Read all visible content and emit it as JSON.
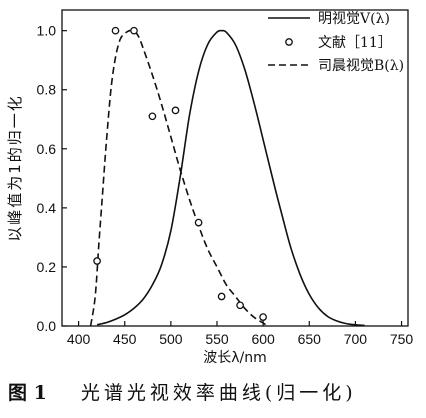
{
  "chart_data": {
    "type": "line",
    "xlabel": "波长λ/nm",
    "ylabel": "以峰值为1的归一化",
    "xlim": [
      382,
      757
    ],
    "ylim": [
      0,
      1.07
    ],
    "xticks": [
      400,
      450,
      500,
      550,
      600,
      650,
      700,
      750
    ],
    "yticks": [
      0,
      0.2,
      0.4,
      0.6,
      0.8,
      1.0
    ],
    "ytick_labels": [
      "0.0",
      "0.2",
      "0.4",
      "0.6",
      "0.8",
      "1.0"
    ],
    "grid": false,
    "legend_position": "top-right",
    "color": "#111111",
    "series": [
      {
        "name": "明视觉V(λ)",
        "line_style": "solid",
        "x": [
          420,
          430,
          440,
          450,
          460,
          470,
          480,
          490,
          500,
          510,
          520,
          530,
          540,
          550,
          555,
          560,
          570,
          580,
          590,
          600,
          610,
          620,
          630,
          640,
          650,
          660,
          670,
          680,
          690,
          700,
          710
        ],
        "y": [
          0.004,
          0.0116,
          0.023,
          0.038,
          0.06,
          0.091,
          0.139,
          0.208,
          0.323,
          0.503,
          0.71,
          0.862,
          0.954,
          0.995,
          1.0,
          0.995,
          0.952,
          0.87,
          0.757,
          0.631,
          0.503,
          0.381,
          0.265,
          0.175,
          0.107,
          0.061,
          0.032,
          0.017,
          0.008,
          0.004,
          0.002
        ]
      },
      {
        "name": "文献［11］",
        "marker": "open-circle",
        "x": [
          420,
          440,
          460,
          480,
          505,
          530,
          555,
          575,
          600
        ],
        "y": [
          0.22,
          1.0,
          1.0,
          0.71,
          0.73,
          0.35,
          0.1,
          0.07,
          0.03
        ]
      },
      {
        "name": "司晨视觉B(λ)",
        "line_style": "dashed",
        "x": [
          413,
          418,
          422,
          426,
          430,
          435,
          440,
          445,
          450,
          455,
          460,
          465,
          470,
          480,
          490,
          500,
          510,
          520,
          530,
          540,
          550,
          560,
          570,
          580,
          590,
          600,
          605
        ],
        "y": [
          0,
          0.1,
          0.28,
          0.45,
          0.62,
          0.8,
          0.91,
          0.97,
          0.99,
          1.0,
          1.0,
          0.98,
          0.94,
          0.85,
          0.75,
          0.64,
          0.53,
          0.43,
          0.34,
          0.26,
          0.2,
          0.14,
          0.1,
          0.06,
          0.03,
          0.01,
          0
        ]
      }
    ]
  },
  "caption": {
    "label": "图 1",
    "text": "光谱光视效率曲线(归一化)"
  }
}
